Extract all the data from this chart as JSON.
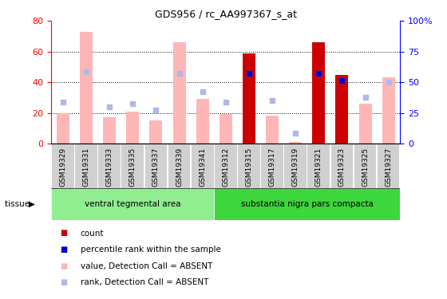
{
  "title": "GDS956 / rc_AA997367_s_at",
  "samples": [
    "GSM19329",
    "GSM19331",
    "GSM19333",
    "GSM19335",
    "GSM19337",
    "GSM19339",
    "GSM19341",
    "GSM19312",
    "GSM19315",
    "GSM19317",
    "GSM19319",
    "GSM19321",
    "GSM19323",
    "GSM19325",
    "GSM19327"
  ],
  "value_absent": [
    20,
    73,
    17,
    21,
    15,
    66,
    29,
    19,
    59,
    18,
    1,
    66,
    45,
    26,
    43
  ],
  "rank_absent": [
    27,
    47,
    24,
    26,
    22,
    46,
    34,
    27,
    46,
    28,
    7,
    46,
    41,
    30,
    40
  ],
  "count": [
    0,
    0,
    0,
    0,
    0,
    0,
    0,
    0,
    59,
    0,
    0,
    66,
    45,
    0,
    0
  ],
  "percentile": [
    0,
    0,
    0,
    0,
    0,
    0,
    0,
    0,
    46,
    0,
    0,
    46,
    41,
    0,
    0
  ],
  "tissue_groups": [
    {
      "label": "ventral tegmental area",
      "start": 0,
      "end": 7,
      "color": "#90EE90"
    },
    {
      "label": "substantia nigra pars compacta",
      "start": 7,
      "end": 15,
      "color": "#3DD63D"
    }
  ],
  "ylim_left": [
    0,
    80
  ],
  "ylim_right": [
    0,
    100
  ],
  "y_ticks_left": [
    0,
    20,
    40,
    60,
    80
  ],
  "y_ticks_right": [
    0,
    25,
    50,
    75,
    100
  ],
  "y_tick_labels_right": [
    "0",
    "25",
    "50",
    "75",
    "100%"
  ],
  "color_count": "#cc0000",
  "color_percentile": "#0000cc",
  "color_value_absent": "#ffb6b6",
  "color_rank_absent": "#b0b8e8",
  "legend_items": [
    {
      "label": "count",
      "color": "#cc0000"
    },
    {
      "label": "percentile rank within the sample",
      "color": "#0000cc"
    },
    {
      "label": "value, Detection Call = ABSENT",
      "color": "#ffb6b6"
    },
    {
      "label": "rank, Detection Call = ABSENT",
      "color": "#b0b8e8"
    }
  ],
  "tissue_label": "tissue",
  "xlabels_bg": "#cccccc",
  "grid_yticks": [
    20,
    40,
    60
  ]
}
